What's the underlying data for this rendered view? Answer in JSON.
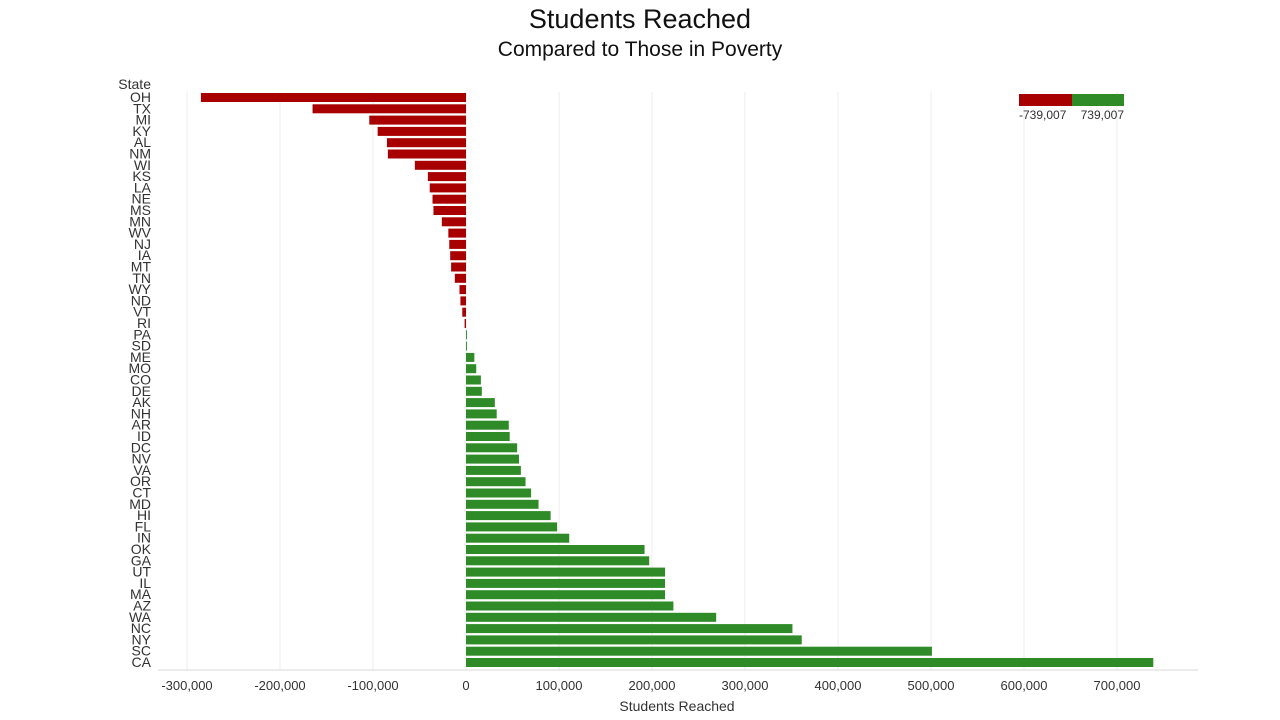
{
  "chart_data": {
    "type": "bar",
    "orientation": "horizontal",
    "title": "Students Reached",
    "subtitle": "Compared to Those in Poverty",
    "xlabel": "Students Reached",
    "ylabel": "State",
    "xlim": [
      -330000,
      790000
    ],
    "xticks": [
      -300000,
      -200000,
      -100000,
      0,
      100000,
      200000,
      300000,
      400000,
      500000,
      600000,
      700000
    ],
    "xtick_labels": [
      "-300,000",
      "-200,000",
      "-100,000",
      "0",
      "100,000",
      "200,000",
      "300,000",
      "400,000",
      "500,000",
      "600,000",
      "700,000"
    ],
    "grid": "vertical",
    "legend": {
      "placement": "top-right",
      "min_label": "-739,007",
      "max_label": "739,007",
      "min_value": -739007,
      "max_value": 739007
    },
    "colors": {
      "negative": "#a80000",
      "positive": "#2e8b27"
    },
    "categories": [
      "OH",
      "TX",
      "MI",
      "KY",
      "AL",
      "NM",
      "WI",
      "KS",
      "LA",
      "NE",
      "MS",
      "MN",
      "WV",
      "NJ",
      "IA",
      "MT",
      "TN",
      "WY",
      "ND",
      "VT",
      "RI",
      "PA",
      "SD",
      "ME",
      "MO",
      "CO",
      "DE",
      "AK",
      "NH",
      "AR",
      "ID",
      "DC",
      "NV",
      "VA",
      "OR",
      "CT",
      "MD",
      "HI",
      "FL",
      "IN",
      "OK",
      "GA",
      "UT",
      "IL",
      "MA",
      "AZ",
      "WA",
      "NC",
      "NY",
      "SC",
      "CA"
    ],
    "values": [
      -285000,
      -165000,
      -104000,
      -95000,
      -85000,
      -84000,
      -55000,
      -41000,
      -39000,
      -36000,
      -35000,
      -26000,
      -19000,
      -18000,
      -17000,
      -16000,
      -12000,
      -7000,
      -6000,
      -4000,
      -1500,
      1000,
      1000,
      9000,
      11000,
      16000,
      17000,
      31000,
      33000,
      46000,
      47000,
      55000,
      57000,
      59000,
      64000,
      70000,
      78000,
      91000,
      98000,
      111000,
      192000,
      197000,
      214000,
      214000,
      214000,
      223000,
      269000,
      351000,
      361000,
      501000,
      739007
    ]
  }
}
